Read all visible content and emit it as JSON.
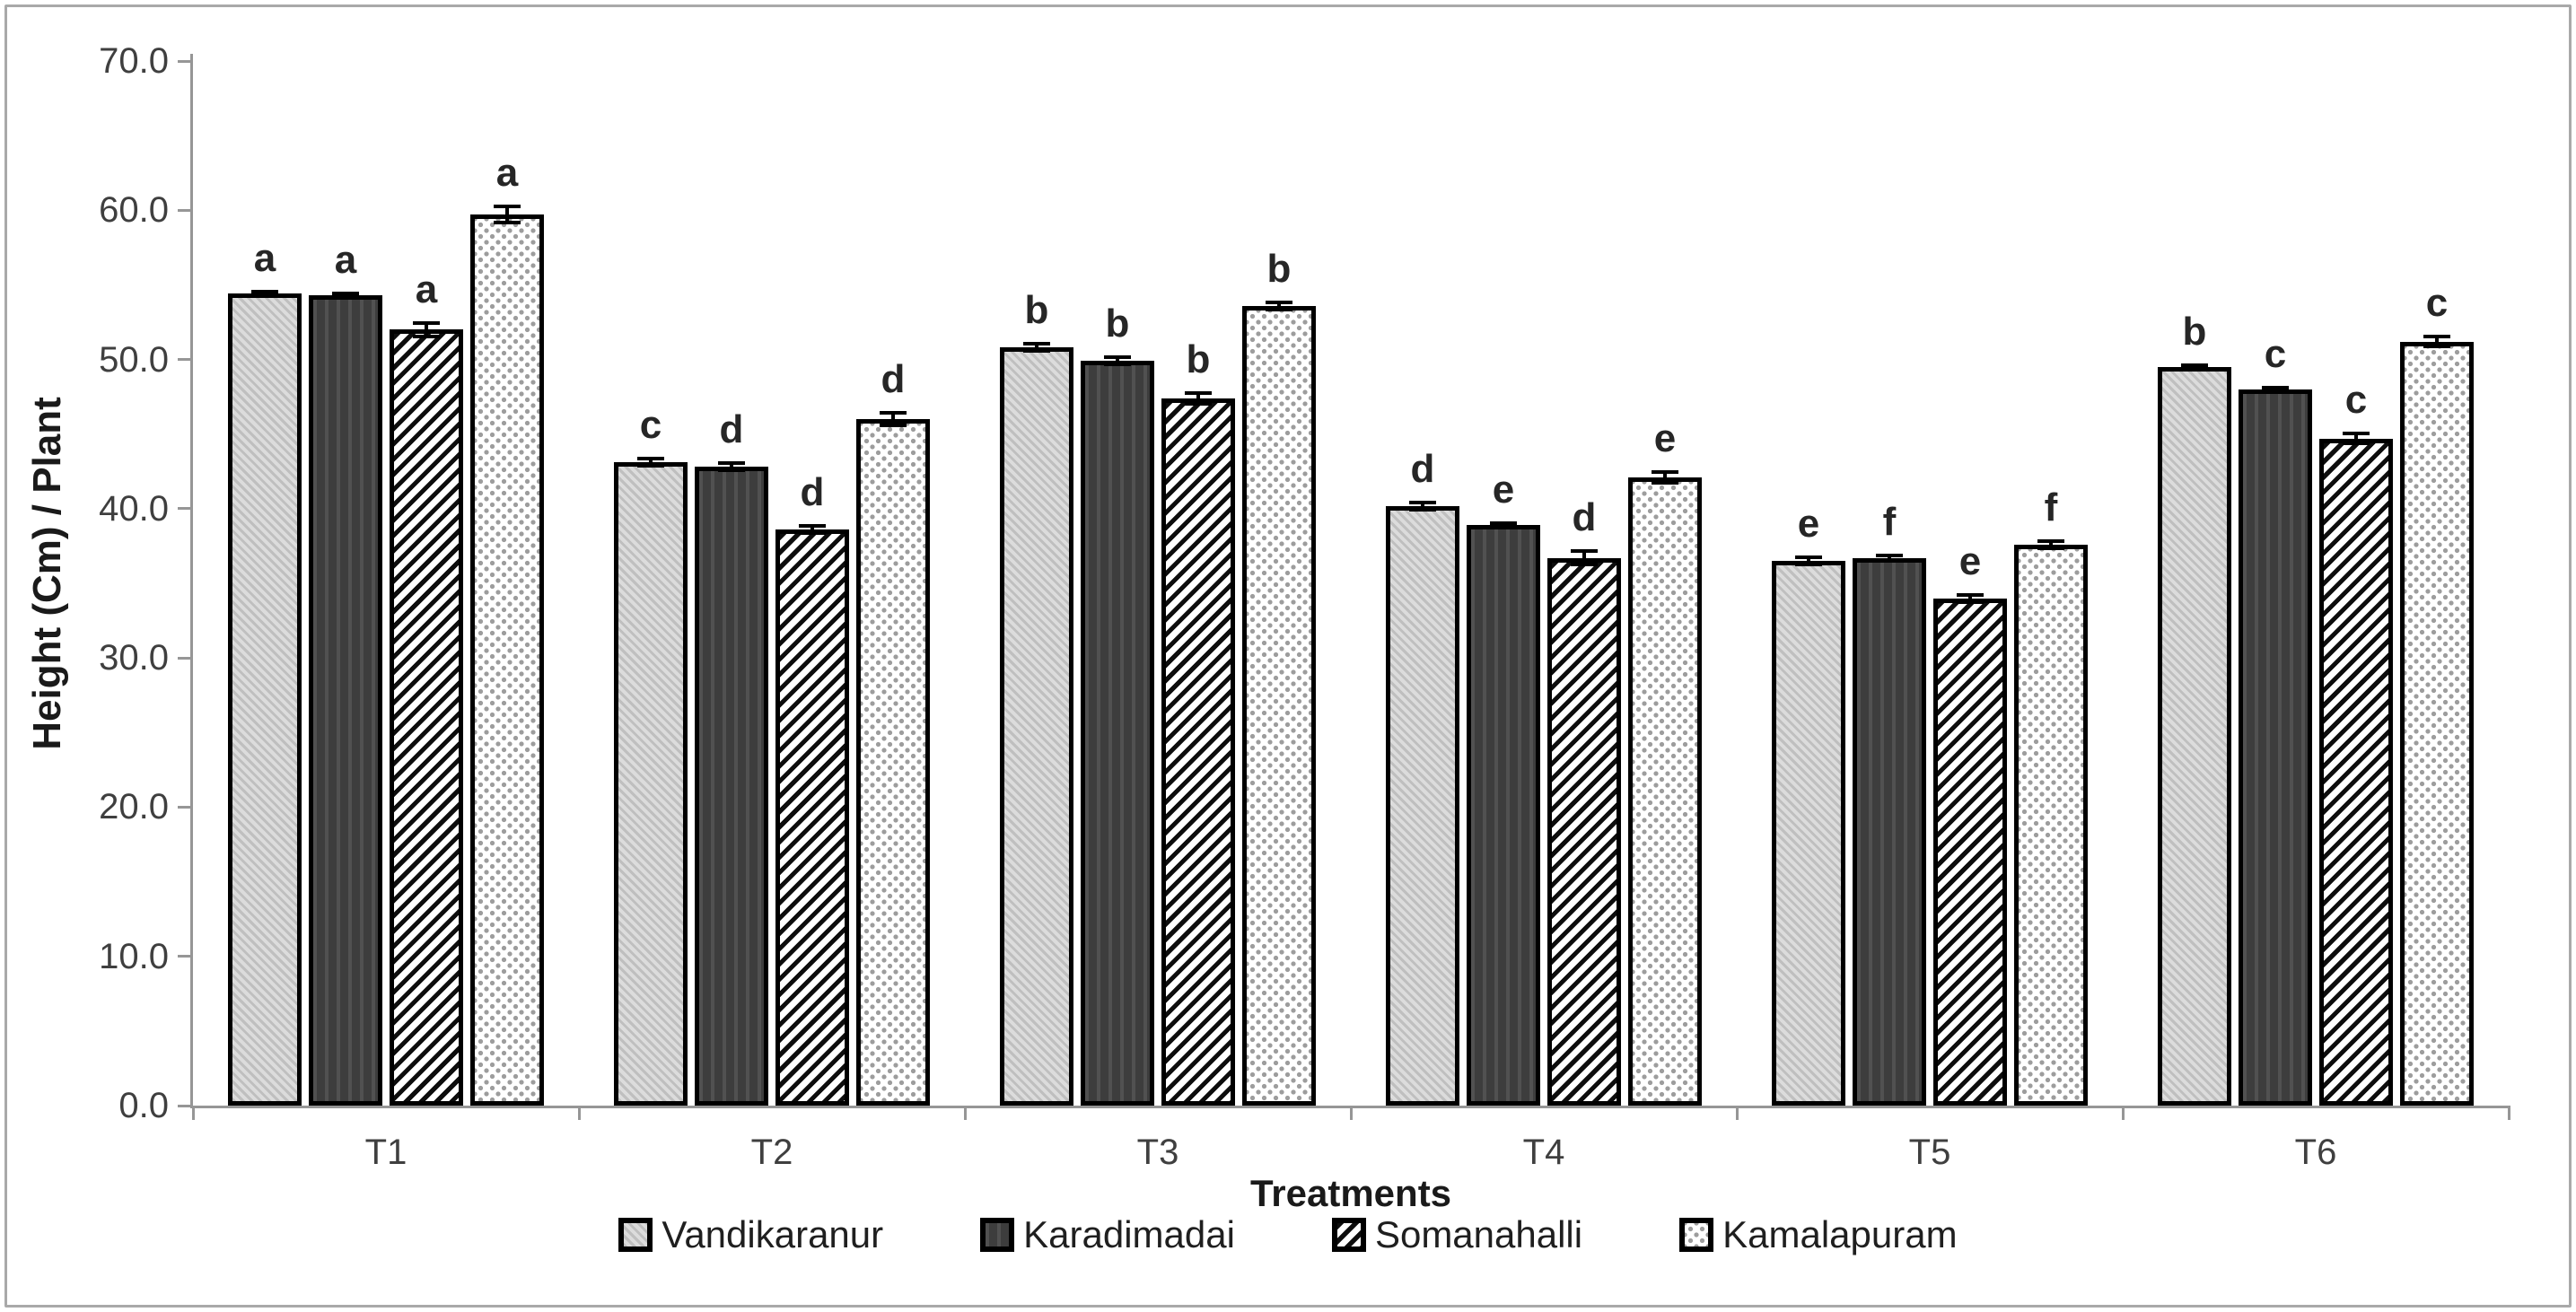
{
  "figure": {
    "background": "#ffffff",
    "border_color": "#a9a9a9",
    "axis_color": "#969696",
    "text_color": "#3f3f3f",
    "bar_border_color": "#000000"
  },
  "chart_data": {
    "type": "bar",
    "title": "",
    "xlabel": "Treatments",
    "ylabel": "Height (Cm) / Plant",
    "ylim": [
      0,
      70
    ],
    "ytick_step": 10,
    "ytick_labels": [
      "70.0",
      "60.0",
      "50.0",
      "40.0",
      "30.0",
      "20.0",
      "10.0",
      "0.0"
    ],
    "grid": false,
    "legend_position": "bottom",
    "error_bars": true,
    "categories": [
      "T1",
      "T2",
      "T3",
      "T4",
      "T5",
      "T6"
    ],
    "series": [
      {
        "name": "Vandikaranur",
        "pattern": "light-gray-fine-diagonal-hatch",
        "values": [
          54.4,
          43.1,
          50.8,
          40.2,
          36.5,
          49.5
        ],
        "errors": [
          0.2,
          0.3,
          0.3,
          0.3,
          0.3,
          0.2
        ],
        "letters": [
          "a",
          "c",
          "b",
          "d",
          "e",
          "b"
        ]
      },
      {
        "name": "Karadimadai",
        "pattern": "dark-charcoal-solid",
        "values": [
          54.3,
          42.8,
          49.9,
          38.9,
          36.7,
          48.0
        ],
        "errors": [
          0.2,
          0.3,
          0.3,
          0.2,
          0.2,
          0.2
        ],
        "letters": [
          "a",
          "d",
          "b",
          "e",
          "f",
          "c"
        ]
      },
      {
        "name": "Somanahalli",
        "pattern": "white-bold-diagonal-stripes",
        "values": [
          52.0,
          38.6,
          47.4,
          36.7,
          34.0,
          44.7
        ],
        "errors": [
          0.5,
          0.3,
          0.4,
          0.5,
          0.3,
          0.4
        ],
        "letters": [
          "a",
          "d",
          "b",
          "d",
          "e",
          "c"
        ]
      },
      {
        "name": "Kamalapuram",
        "pattern": "white-gray-dots",
        "values": [
          59.7,
          46.0,
          53.6,
          42.1,
          37.6,
          51.2
        ],
        "errors": [
          0.6,
          0.5,
          0.3,
          0.4,
          0.3,
          0.4
        ],
        "letters": [
          "a",
          "d",
          "b",
          "e",
          "f",
          "c"
        ]
      }
    ]
  }
}
